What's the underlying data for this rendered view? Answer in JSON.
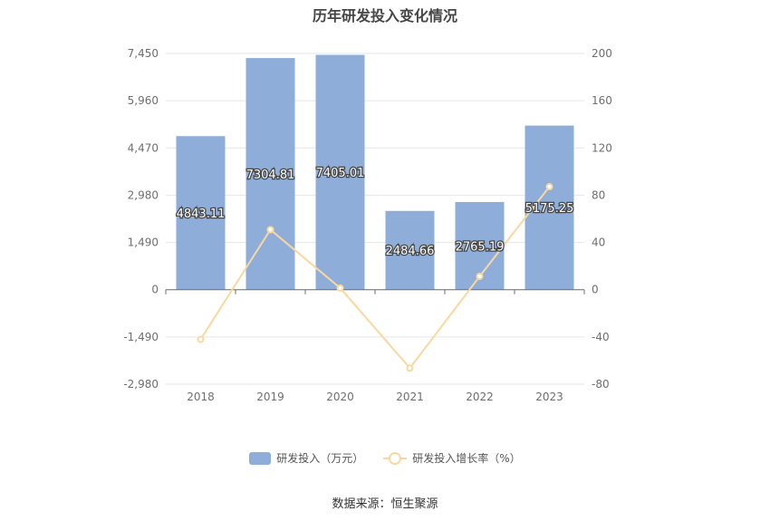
{
  "title": "历年研发投入变化情况",
  "source": "数据来源：恒生聚源",
  "colors": {
    "bar": "#8eadd9",
    "line": "#f9d8a0",
    "grid": "#e3e6ee",
    "axis": "#6e6e6e"
  },
  "legend": {
    "bar_label": "研发投入（万元）",
    "line_label": "研发投入增长率（%）"
  },
  "chart_data": {
    "type": "bar",
    "categories": [
      "2018",
      "2019",
      "2020",
      "2021",
      "2022",
      "2023"
    ],
    "series": [
      {
        "name": "研发投入（万元）",
        "type": "bar",
        "axis": "left",
        "values": [
          4843.11,
          7304.81,
          7405.01,
          2484.66,
          2765.19,
          5175.25
        ],
        "labels": [
          "4843.11",
          "7304.81",
          "7405.01",
          "2484.66",
          "2765.19",
          "5175.25"
        ]
      },
      {
        "name": "研发投入增长率（%）",
        "type": "line",
        "axis": "right",
        "values": [
          -42,
          50.8,
          1.4,
          -66.4,
          11.3,
          87.2
        ]
      }
    ],
    "y_left": {
      "ylim": [
        -2980,
        7450
      ],
      "ticks": [
        7450,
        5960,
        4470,
        2980,
        1490,
        0,
        -1490,
        -2980
      ],
      "tick_labels": [
        "7,450",
        "5,960",
        "4,470",
        "2,980",
        "1,490",
        "0",
        "-1,490",
        "-2,980"
      ]
    },
    "y_right": {
      "ylim": [
        -80,
        200
      ],
      "ticks": [
        200,
        160,
        120,
        80,
        40,
        0,
        -40,
        -80
      ],
      "tick_labels": [
        "200",
        "160",
        "120",
        "80",
        "40",
        "0",
        "-40",
        "-80"
      ]
    },
    "grid": true,
    "legend_position": "bottom"
  }
}
